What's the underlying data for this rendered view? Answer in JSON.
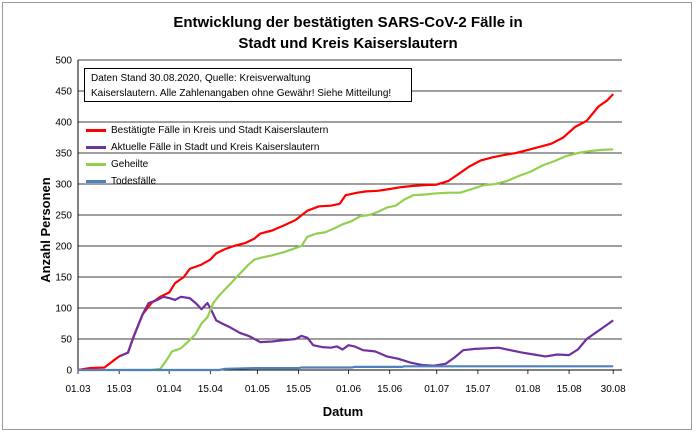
{
  "chart_data": {
    "type": "line",
    "title_line1": "Entwicklung der bestätigten SARS-CoV-2 Fälle in",
    "title_line2": "Stadt und Kreis Kaiserslautern",
    "xlabel": "Datum",
    "ylabel": "Anzahl Personen",
    "ylim": [
      0,
      500
    ],
    "yticks": [
      0,
      50,
      100,
      150,
      200,
      250,
      300,
      350,
      400,
      450,
      500
    ],
    "xlim": [
      0,
      185
    ],
    "xticks": [
      {
        "pos": 0,
        "label": "01.03"
      },
      {
        "pos": 14,
        "label": "15.03"
      },
      {
        "pos": 31,
        "label": "01.04"
      },
      {
        "pos": 45,
        "label": "15.04"
      },
      {
        "pos": 61,
        "label": "01.05"
      },
      {
        "pos": 75,
        "label": "15.05"
      },
      {
        "pos": 92,
        "label": "01.06"
      },
      {
        "pos": 106,
        "label": "15.06"
      },
      {
        "pos": 122,
        "label": "01.07"
      },
      {
        "pos": 136,
        "label": "15.07"
      },
      {
        "pos": 153,
        "label": "01.08"
      },
      {
        "pos": 167,
        "label": "15.08"
      },
      {
        "pos": 182,
        "label": "30.08"
      }
    ],
    "grid": "horizontal",
    "legend_position": "top-left",
    "annotation_line1": "Daten Stand 30.08.2020, Quelle: Kreisverwaltung",
    "annotation_line2": "Kaiserslautern. Alle Zahlenangaben ohne Gewähr! Siehe Mitteilung!",
    "series": [
      {
        "name": "Bestätigte Fälle in Kreis und Stadt Kaiserslautern",
        "color": "#ff0000",
        "points": [
          [
            0,
            0
          ],
          [
            4,
            3
          ],
          [
            9,
            4
          ],
          [
            12,
            15
          ],
          [
            14,
            22
          ],
          [
            17,
            28
          ],
          [
            19,
            55
          ],
          [
            22,
            90
          ],
          [
            25,
            108
          ],
          [
            28,
            118
          ],
          [
            31,
            125
          ],
          [
            33,
            140
          ],
          [
            36,
            150
          ],
          [
            38,
            163
          ],
          [
            42,
            170
          ],
          [
            45,
            178
          ],
          [
            47,
            188
          ],
          [
            50,
            195
          ],
          [
            53,
            200
          ],
          [
            57,
            205
          ],
          [
            60,
            212
          ],
          [
            62,
            220
          ],
          [
            66,
            225
          ],
          [
            70,
            233
          ],
          [
            74,
            242
          ],
          [
            78,
            257
          ],
          [
            82,
            264
          ],
          [
            86,
            265
          ],
          [
            89,
            268
          ],
          [
            91,
            282
          ],
          [
            95,
            286
          ],
          [
            98,
            288
          ],
          [
            102,
            289
          ],
          [
            106,
            292
          ],
          [
            110,
            295
          ],
          [
            114,
            297
          ],
          [
            118,
            298
          ],
          [
            122,
            299
          ],
          [
            126,
            305
          ],
          [
            130,
            318
          ],
          [
            133,
            328
          ],
          [
            137,
            338
          ],
          [
            141,
            343
          ],
          [
            145,
            347
          ],
          [
            149,
            350
          ],
          [
            153,
            355
          ],
          [
            157,
            360
          ],
          [
            161,
            365
          ],
          [
            165,
            375
          ],
          [
            169,
            392
          ],
          [
            173,
            402
          ],
          [
            177,
            425
          ],
          [
            180,
            435
          ],
          [
            182,
            445
          ]
        ]
      },
      {
        "name": "Aktuelle Fälle in Stadt und Kreis Kaiserslautern",
        "color": "#7030a0",
        "points": [
          [
            14,
            22
          ],
          [
            17,
            28
          ],
          [
            19,
            55
          ],
          [
            22,
            90
          ],
          [
            24,
            108
          ],
          [
            27,
            113
          ],
          [
            29,
            118
          ],
          [
            31,
            116
          ],
          [
            33,
            113
          ],
          [
            35,
            118
          ],
          [
            38,
            116
          ],
          [
            40,
            108
          ],
          [
            42,
            98
          ],
          [
            44,
            108
          ],
          [
            45,
            100
          ],
          [
            47,
            80
          ],
          [
            49,
            75
          ],
          [
            52,
            68
          ],
          [
            55,
            60
          ],
          [
            58,
            55
          ],
          [
            60,
            50
          ],
          [
            62,
            45
          ],
          [
            66,
            46
          ],
          [
            70,
            48
          ],
          [
            74,
            50
          ],
          [
            76,
            55
          ],
          [
            78,
            52
          ],
          [
            80,
            40
          ],
          [
            83,
            37
          ],
          [
            86,
            36
          ],
          [
            88,
            38
          ],
          [
            90,
            33
          ],
          [
            92,
            40
          ],
          [
            94,
            38
          ],
          [
            97,
            32
          ],
          [
            101,
            30
          ],
          [
            105,
            22
          ],
          [
            109,
            18
          ],
          [
            113,
            12
          ],
          [
            117,
            8
          ],
          [
            121,
            7
          ],
          [
            125,
            10
          ],
          [
            128,
            20
          ],
          [
            131,
            32
          ],
          [
            135,
            34
          ],
          [
            139,
            35
          ],
          [
            143,
            36
          ],
          [
            147,
            32
          ],
          [
            151,
            28
          ],
          [
            155,
            25
          ],
          [
            159,
            22
          ],
          [
            163,
            25
          ],
          [
            167,
            24
          ],
          [
            170,
            33
          ],
          [
            173,
            50
          ],
          [
            176,
            60
          ],
          [
            179,
            70
          ],
          [
            182,
            80
          ]
        ]
      },
      {
        "name": "Geheilte",
        "color": "#92d050",
        "points": [
          [
            17,
            0
          ],
          [
            25,
            0
          ],
          [
            28,
            2
          ],
          [
            30,
            15
          ],
          [
            32,
            30
          ],
          [
            35,
            35
          ],
          [
            38,
            48
          ],
          [
            40,
            58
          ],
          [
            42,
            75
          ],
          [
            44,
            85
          ],
          [
            46,
            108
          ],
          [
            48,
            120
          ],
          [
            50,
            130
          ],
          [
            52,
            140
          ],
          [
            55,
            155
          ],
          [
            58,
            170
          ],
          [
            60,
            178
          ],
          [
            63,
            182
          ],
          [
            66,
            185
          ],
          [
            70,
            190
          ],
          [
            73,
            195
          ],
          [
            76,
            200
          ],
          [
            78,
            215
          ],
          [
            81,
            220
          ],
          [
            84,
            222
          ],
          [
            87,
            228
          ],
          [
            90,
            235
          ],
          [
            93,
            240
          ],
          [
            96,
            248
          ],
          [
            99,
            250
          ],
          [
            102,
            255
          ],
          [
            105,
            262
          ],
          [
            108,
            265
          ],
          [
            111,
            275
          ],
          [
            114,
            282
          ],
          [
            118,
            283
          ],
          [
            122,
            285
          ],
          [
            126,
            286
          ],
          [
            130,
            286
          ],
          [
            134,
            292
          ],
          [
            138,
            298
          ],
          [
            142,
            300
          ],
          [
            146,
            305
          ],
          [
            150,
            313
          ],
          [
            154,
            320
          ],
          [
            158,
            330
          ],
          [
            162,
            337
          ],
          [
            166,
            345
          ],
          [
            170,
            350
          ],
          [
            174,
            353
          ],
          [
            178,
            355
          ],
          [
            182,
            356
          ]
        ]
      },
      {
        "name": "Todesfälle",
        "color": "#4f81bd",
        "points": [
          [
            0,
            0
          ],
          [
            48,
            0
          ],
          [
            50,
            2
          ],
          [
            60,
            3
          ],
          [
            75,
            3
          ],
          [
            76,
            4
          ],
          [
            93,
            4
          ],
          [
            94,
            5
          ],
          [
            110,
            5
          ],
          [
            111,
            6
          ],
          [
            182,
            6
          ]
        ]
      }
    ]
  }
}
